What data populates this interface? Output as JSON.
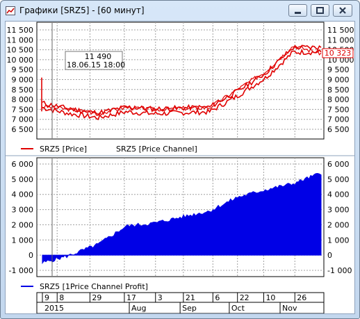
{
  "window": {
    "title": "Графики [SRZ5] - [60 минут]",
    "buttons": {
      "minimize": "minimize-icon",
      "maximize": "maximize-icon",
      "close": "close-icon"
    }
  },
  "colors": {
    "price": "#e00000",
    "profit": "#0000e6",
    "grid": "#9a9a9a",
    "axis": "#000000"
  },
  "price_panel": {
    "y_ticks": [
      "11 500",
      "11 000",
      "10 500",
      "10 000",
      "9 500",
      "9 000",
      "8 500",
      "8 000",
      "7 500",
      "7 000",
      "6 500"
    ],
    "last_value_label": "10 323",
    "cursor_value": "11 490",
    "cursor_date": "18.06.15 18:00",
    "legend": {
      "series1": "SRZ5 [Price]",
      "series2": "SRZ5 [Price Channel]"
    }
  },
  "profit_panel": {
    "y_ticks": [
      "6 000",
      "5 000",
      "4 000",
      "3 000",
      "2 000",
      "1 000",
      "0",
      "-1 000"
    ],
    "legend": {
      "series1": "SRZ5 [1Price Channel Profit]"
    }
  },
  "time_axis": {
    "days": [
      "9",
      "8",
      "29",
      "17",
      "3",
      "21",
      "6",
      "22",
      "10",
      "26"
    ],
    "months": [
      "2015",
      "Aug",
      "Sep",
      "Oct",
      "Nov"
    ]
  },
  "chart_data": [
    {
      "type": "line",
      "x": [
        "2015-06-09",
        "2015-06-18",
        "2015-07-08",
        "2015-07-29",
        "2015-08-17",
        "2015-09-03",
        "2015-09-21",
        "2015-10-06",
        "2015-10-22",
        "2015-11-10",
        "2015-11-26"
      ],
      "series": [
        {
          "name": "SRZ5 [Price]",
          "values": [
            7650,
            7500,
            7300,
            7600,
            7500,
            7550,
            7600,
            8500,
            9400,
            10700,
            10323
          ]
        },
        {
          "name": "SRZ5 [Price Channel]",
          "values": [
            7700,
            7400,
            7200,
            7500,
            7400,
            7450,
            7500,
            8300,
            9200,
            10500,
            10500
          ]
        }
      ],
      "ylim": [
        6500,
        11500
      ]
    },
    {
      "type": "area",
      "x": [
        "2015-06-09",
        "2015-06-18",
        "2015-07-08",
        "2015-07-29",
        "2015-08-17",
        "2015-09-03",
        "2015-09-21",
        "2015-10-06",
        "2015-10-22",
        "2015-11-10",
        "2015-11-26"
      ],
      "series": [
        {
          "name": "SRZ5 [1Price Channel Profit]",
          "values": [
            -500,
            0,
            700,
            1900,
            2100,
            2500,
            2900,
            3800,
            4300,
            4700,
            5400
          ]
        }
      ],
      "ylim": [
        -1000,
        6000
      ]
    }
  ]
}
